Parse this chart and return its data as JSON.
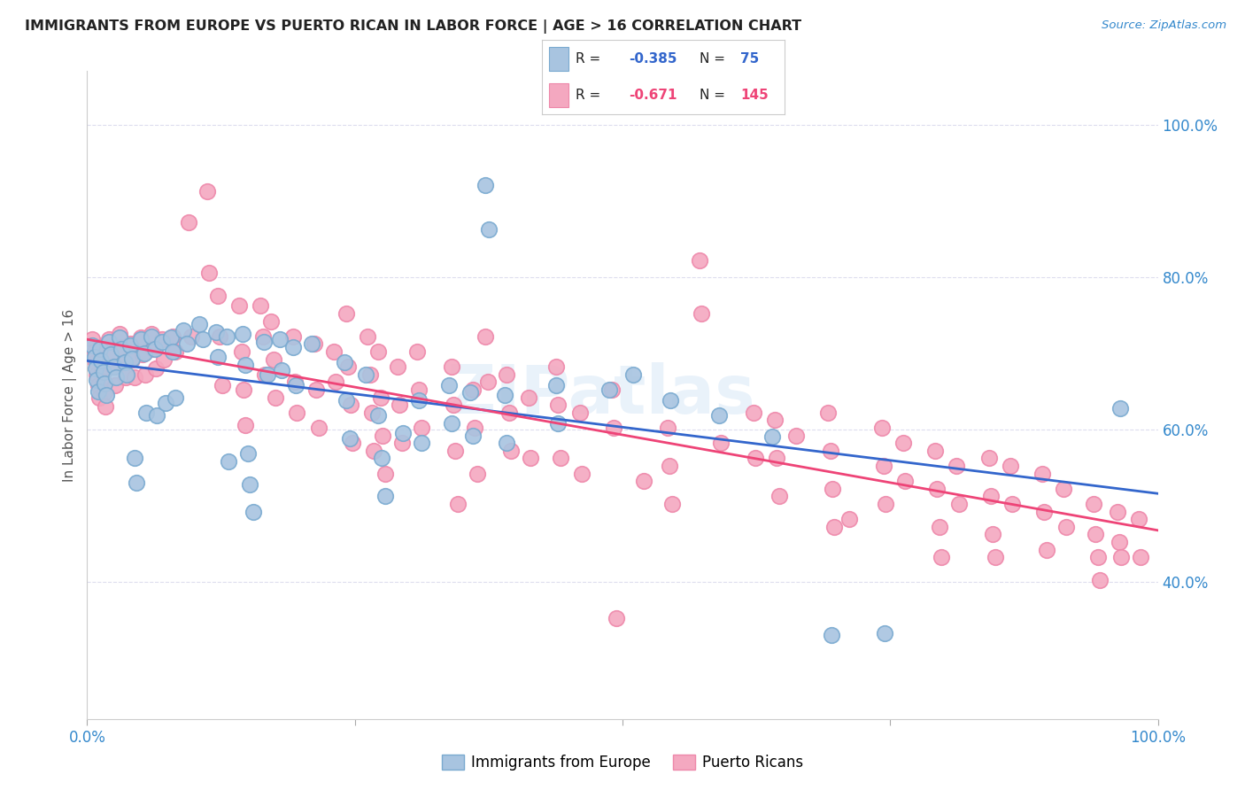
{
  "title": "IMMIGRANTS FROM EUROPE VS PUERTO RICAN IN LABOR FORCE | AGE > 16 CORRELATION CHART",
  "source": "Source: ZipAtlas.com",
  "ylabel": "In Labor Force | Age > 16",
  "xlim": [
    0.0,
    1.0
  ],
  "ylim": [
    0.22,
    1.07
  ],
  "y_tick_positions_right": [
    0.4,
    0.6,
    0.8,
    1.0
  ],
  "y_tick_labels_right": [
    "40.0%",
    "60.0%",
    "80.0%",
    "100.0%"
  ],
  "blue_color": "#A8C4E0",
  "pink_color": "#F4A8C0",
  "blue_edge_color": "#7aaad0",
  "pink_edge_color": "#ee88aa",
  "blue_line_color": "#3366CC",
  "pink_line_color": "#EE4477",
  "background_color": "#FFFFFF",
  "grid_color": "#DDDDEE",
  "watermark": "ZIPatlas",
  "blue_scatter": [
    [
      0.005,
      0.71
    ],
    [
      0.007,
      0.695
    ],
    [
      0.008,
      0.68
    ],
    [
      0.009,
      0.665
    ],
    [
      0.01,
      0.65
    ],
    [
      0.012,
      0.705
    ],
    [
      0.013,
      0.69
    ],
    [
      0.015,
      0.675
    ],
    [
      0.016,
      0.66
    ],
    [
      0.018,
      0.645
    ],
    [
      0.02,
      0.715
    ],
    [
      0.022,
      0.698
    ],
    [
      0.025,
      0.682
    ],
    [
      0.027,
      0.668
    ],
    [
      0.03,
      0.72
    ],
    [
      0.032,
      0.705
    ],
    [
      0.035,
      0.688
    ],
    [
      0.037,
      0.672
    ],
    [
      0.04,
      0.71
    ],
    [
      0.042,
      0.693
    ],
    [
      0.044,
      0.562
    ],
    [
      0.046,
      0.53
    ],
    [
      0.05,
      0.718
    ],
    [
      0.053,
      0.7
    ],
    [
      0.055,
      0.622
    ],
    [
      0.06,
      0.722
    ],
    [
      0.063,
      0.705
    ],
    [
      0.065,
      0.618
    ],
    [
      0.07,
      0.715
    ],
    [
      0.073,
      0.635
    ],
    [
      0.078,
      0.72
    ],
    [
      0.08,
      0.702
    ],
    [
      0.082,
      0.642
    ],
    [
      0.09,
      0.73
    ],
    [
      0.093,
      0.712
    ],
    [
      0.105,
      0.738
    ],
    [
      0.108,
      0.718
    ],
    [
      0.12,
      0.728
    ],
    [
      0.122,
      0.695
    ],
    [
      0.13,
      0.722
    ],
    [
      0.132,
      0.558
    ],
    [
      0.145,
      0.725
    ],
    [
      0.148,
      0.685
    ],
    [
      0.15,
      0.568
    ],
    [
      0.152,
      0.528
    ],
    [
      0.155,
      0.492
    ],
    [
      0.165,
      0.715
    ],
    [
      0.168,
      0.672
    ],
    [
      0.18,
      0.718
    ],
    [
      0.182,
      0.678
    ],
    [
      0.192,
      0.708
    ],
    [
      0.195,
      0.658
    ],
    [
      0.21,
      0.712
    ],
    [
      0.24,
      0.688
    ],
    [
      0.242,
      0.638
    ],
    [
      0.245,
      0.588
    ],
    [
      0.26,
      0.672
    ],
    [
      0.272,
      0.618
    ],
    [
      0.275,
      0.562
    ],
    [
      0.278,
      0.512
    ],
    [
      0.295,
      0.595
    ],
    [
      0.31,
      0.638
    ],
    [
      0.312,
      0.582
    ],
    [
      0.338,
      0.658
    ],
    [
      0.34,
      0.608
    ],
    [
      0.358,
      0.648
    ],
    [
      0.36,
      0.592
    ],
    [
      0.372,
      0.92
    ],
    [
      0.375,
      0.862
    ],
    [
      0.39,
      0.645
    ],
    [
      0.392,
      0.582
    ],
    [
      0.438,
      0.658
    ],
    [
      0.44,
      0.608
    ],
    [
      0.488,
      0.652
    ],
    [
      0.51,
      0.672
    ],
    [
      0.545,
      0.638
    ],
    [
      0.59,
      0.618
    ],
    [
      0.64,
      0.59
    ],
    [
      0.695,
      0.33
    ],
    [
      0.745,
      0.332
    ],
    [
      0.965,
      0.628
    ]
  ],
  "pink_scatter": [
    [
      0.005,
      0.718
    ],
    [
      0.007,
      0.702
    ],
    [
      0.008,
      0.688
    ],
    [
      0.009,
      0.672
    ],
    [
      0.01,
      0.658
    ],
    [
      0.011,
      0.642
    ],
    [
      0.012,
      0.708
    ],
    [
      0.013,
      0.692
    ],
    [
      0.014,
      0.678
    ],
    [
      0.015,
      0.662
    ],
    [
      0.016,
      0.648
    ],
    [
      0.017,
      0.63
    ],
    [
      0.02,
      0.718
    ],
    [
      0.022,
      0.7
    ],
    [
      0.024,
      0.682
    ],
    [
      0.026,
      0.658
    ],
    [
      0.03,
      0.725
    ],
    [
      0.032,
      0.708
    ],
    [
      0.034,
      0.688
    ],
    [
      0.036,
      0.668
    ],
    [
      0.04,
      0.712
    ],
    [
      0.042,
      0.692
    ],
    [
      0.044,
      0.668
    ],
    [
      0.05,
      0.72
    ],
    [
      0.052,
      0.698
    ],
    [
      0.054,
      0.672
    ],
    [
      0.06,
      0.725
    ],
    [
      0.062,
      0.705
    ],
    [
      0.064,
      0.68
    ],
    [
      0.07,
      0.718
    ],
    [
      0.072,
      0.692
    ],
    [
      0.08,
      0.722
    ],
    [
      0.082,
      0.702
    ],
    [
      0.095,
      0.872
    ],
    [
      0.097,
      0.722
    ],
    [
      0.112,
      0.912
    ],
    [
      0.114,
      0.805
    ],
    [
      0.122,
      0.775
    ],
    [
      0.124,
      0.722
    ],
    [
      0.126,
      0.658
    ],
    [
      0.142,
      0.762
    ],
    [
      0.144,
      0.702
    ],
    [
      0.146,
      0.652
    ],
    [
      0.148,
      0.605
    ],
    [
      0.162,
      0.762
    ],
    [
      0.164,
      0.722
    ],
    [
      0.166,
      0.672
    ],
    [
      0.172,
      0.742
    ],
    [
      0.174,
      0.692
    ],
    [
      0.176,
      0.642
    ],
    [
      0.192,
      0.722
    ],
    [
      0.194,
      0.662
    ],
    [
      0.196,
      0.622
    ],
    [
      0.212,
      0.712
    ],
    [
      0.214,
      0.652
    ],
    [
      0.216,
      0.602
    ],
    [
      0.23,
      0.702
    ],
    [
      0.232,
      0.662
    ],
    [
      0.242,
      0.752
    ],
    [
      0.244,
      0.682
    ],
    [
      0.246,
      0.632
    ],
    [
      0.248,
      0.582
    ],
    [
      0.262,
      0.722
    ],
    [
      0.264,
      0.672
    ],
    [
      0.266,
      0.622
    ],
    [
      0.268,
      0.572
    ],
    [
      0.272,
      0.702
    ],
    [
      0.274,
      0.642
    ],
    [
      0.276,
      0.592
    ],
    [
      0.278,
      0.542
    ],
    [
      0.29,
      0.682
    ],
    [
      0.292,
      0.632
    ],
    [
      0.294,
      0.582
    ],
    [
      0.308,
      0.702
    ],
    [
      0.31,
      0.652
    ],
    [
      0.312,
      0.602
    ],
    [
      0.34,
      0.682
    ],
    [
      0.342,
      0.632
    ],
    [
      0.344,
      0.572
    ],
    [
      0.346,
      0.502
    ],
    [
      0.36,
      0.652
    ],
    [
      0.362,
      0.602
    ],
    [
      0.364,
      0.542
    ],
    [
      0.372,
      0.722
    ],
    [
      0.374,
      0.662
    ],
    [
      0.392,
      0.672
    ],
    [
      0.394,
      0.622
    ],
    [
      0.396,
      0.572
    ],
    [
      0.412,
      0.642
    ],
    [
      0.414,
      0.562
    ],
    [
      0.438,
      0.682
    ],
    [
      0.44,
      0.632
    ],
    [
      0.442,
      0.562
    ],
    [
      0.46,
      0.622
    ],
    [
      0.462,
      0.542
    ],
    [
      0.49,
      0.652
    ],
    [
      0.492,
      0.602
    ],
    [
      0.494,
      0.352
    ],
    [
      0.52,
      0.532
    ],
    [
      0.542,
      0.602
    ],
    [
      0.544,
      0.552
    ],
    [
      0.546,
      0.502
    ],
    [
      0.572,
      0.822
    ],
    [
      0.574,
      0.752
    ],
    [
      0.592,
      0.582
    ],
    [
      0.622,
      0.622
    ],
    [
      0.624,
      0.562
    ],
    [
      0.642,
      0.612
    ],
    [
      0.644,
      0.562
    ],
    [
      0.646,
      0.512
    ],
    [
      0.662,
      0.592
    ],
    [
      0.692,
      0.622
    ],
    [
      0.694,
      0.572
    ],
    [
      0.696,
      0.522
    ],
    [
      0.698,
      0.472
    ],
    [
      0.712,
      0.482
    ],
    [
      0.742,
      0.602
    ],
    [
      0.744,
      0.552
    ],
    [
      0.746,
      0.502
    ],
    [
      0.762,
      0.582
    ],
    [
      0.764,
      0.532
    ],
    [
      0.792,
      0.572
    ],
    [
      0.794,
      0.522
    ],
    [
      0.796,
      0.472
    ],
    [
      0.798,
      0.432
    ],
    [
      0.812,
      0.552
    ],
    [
      0.814,
      0.502
    ],
    [
      0.842,
      0.562
    ],
    [
      0.844,
      0.512
    ],
    [
      0.846,
      0.462
    ],
    [
      0.848,
      0.432
    ],
    [
      0.862,
      0.552
    ],
    [
      0.864,
      0.502
    ],
    [
      0.892,
      0.542
    ],
    [
      0.894,
      0.492
    ],
    [
      0.896,
      0.442
    ],
    [
      0.912,
      0.522
    ],
    [
      0.914,
      0.472
    ],
    [
      0.94,
      0.502
    ],
    [
      0.942,
      0.462
    ],
    [
      0.944,
      0.432
    ],
    [
      0.946,
      0.402
    ],
    [
      0.962,
      0.492
    ],
    [
      0.964,
      0.452
    ],
    [
      0.966,
      0.432
    ],
    [
      0.982,
      0.482
    ],
    [
      0.984,
      0.432
    ]
  ]
}
